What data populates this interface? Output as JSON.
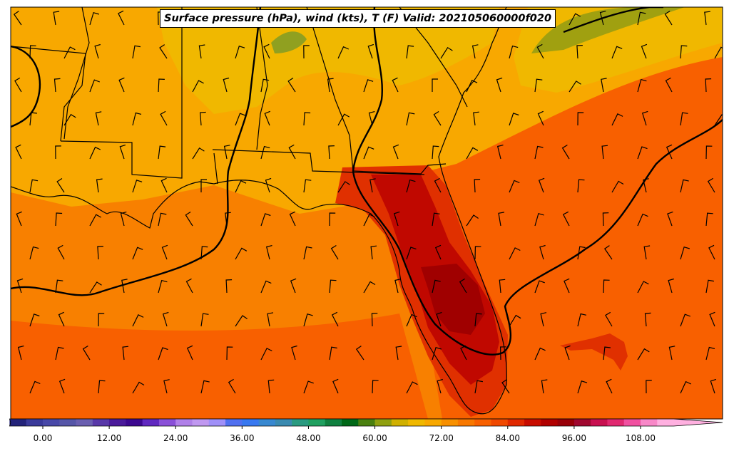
{
  "title": "Surface pressure (hPa), wind (kts), T (F) Valid: 202105060000f020",
  "colorbar": {
    "tick_labels": [
      "0.00",
      "12.00",
      "24.00",
      "36.00",
      "48.00",
      "60.00",
      "72.00",
      "84.00",
      "96.00",
      "108.00"
    ],
    "min": -6,
    "max": 120,
    "step": 3,
    "colors": [
      "#23237a",
      "#3a3a9a",
      "#4848a8",
      "#5656a8",
      "#6a5fb0",
      "#5838a8",
      "#4a1a9a",
      "#3c0890",
      "#6028c0",
      "#8a50d8",
      "#b080e8",
      "#c098f0",
      "#a090f8",
      "#5070f0",
      "#3878f0",
      "#3888d0",
      "#3a8ab0",
      "#2a9a80",
      "#20a060",
      "#108040",
      "#006818",
      "#4a8010",
      "#90a010",
      "#d0b000",
      "#f0b800",
      "#f8a800",
      "#f89000",
      "#f87800",
      "#f86000",
      "#f04800",
      "#e02800",
      "#c80c00",
      "#b00000",
      "#980008",
      "#a00830",
      "#c81050",
      "#e02870",
      "#f050a0",
      "#f888c8",
      "#ffb0e0"
    ]
  },
  "map": {
    "field_colors": {
      "cool_land": "#f0b800",
      "mild_land": "#f8a800",
      "warm_land": "#f88c00",
      "sea": "#f86000",
      "gulf_north": "#f88000",
      "hot_land": "#e03000",
      "very_hot": "#c00800",
      "hottest": "#a00000",
      "cool_hill": "#a0a010",
      "greenish": "#90a020"
    },
    "line_color": "#000000"
  }
}
